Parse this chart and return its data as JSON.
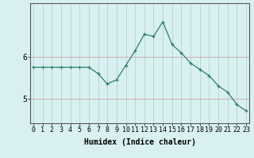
{
  "x": [
    0,
    1,
    2,
    3,
    4,
    5,
    6,
    7,
    8,
    9,
    10,
    11,
    12,
    13,
    14,
    15,
    16,
    17,
    18,
    19,
    20,
    21,
    22,
    23
  ],
  "y": [
    5.75,
    5.75,
    5.75,
    5.75,
    5.75,
    5.75,
    5.75,
    5.6,
    5.35,
    5.45,
    5.8,
    6.15,
    6.55,
    6.5,
    6.85,
    6.3,
    6.1,
    5.85,
    5.7,
    5.55,
    5.3,
    5.15,
    4.85,
    4.7
  ],
  "xlabel": "Humidex (Indice chaleur)",
  "line_color": "#2e7d72",
  "bg_color": "#d9f0f0",
  "grid_color_h": "#cc9999",
  "grid_color_v": "#aacccc",
  "yticks": [
    5,
    6
  ],
  "ylim": [
    4.4,
    7.3
  ],
  "xlim": [
    -0.3,
    23.3
  ],
  "xlabel_fontsize": 7,
  "tick_fontsize": 6,
  "figsize": [
    3.2,
    2.0
  ],
  "dpi": 100
}
